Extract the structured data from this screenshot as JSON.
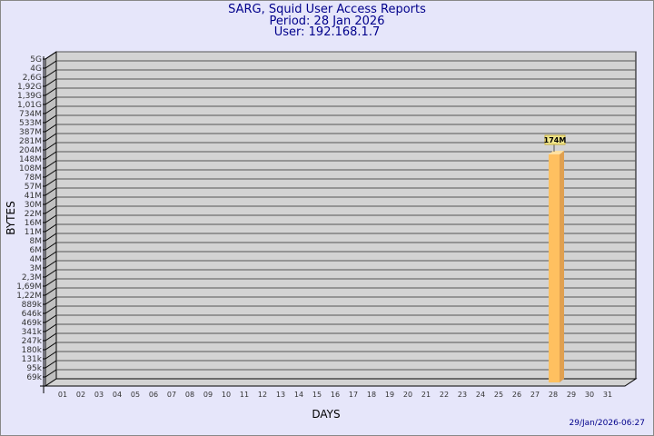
{
  "header": {
    "title": "SARG, Squid User Access Reports",
    "period": "Period: 28 Jan 2026",
    "user": "User: 192.168.1.7"
  },
  "footer": {
    "timestamp": "29/Jan/2026-06:27"
  },
  "colors": {
    "background": "#e6e6fa",
    "plot": "#d3d3d3",
    "bar": "#ffc060",
    "bar_side": "#e0a050",
    "text": "#00008b"
  },
  "chart_data": {
    "type": "bar",
    "title": "SARG, Squid User Access Reports",
    "xlabel": "DAYS",
    "ylabel": "BYTES",
    "y_scale": "log",
    "y_tick_labels": [
      "5G",
      "4G",
      "2,6G",
      "1,92G",
      "1,39G",
      "1,01G",
      "734M",
      "533M",
      "387M",
      "281M",
      "204M",
      "148M",
      "108M",
      "78M",
      "57M",
      "41M",
      "30M",
      "22M",
      "16M",
      "11M",
      "8M",
      "6M",
      "4M",
      "3M",
      "2,3M",
      "1,69M",
      "1,22M",
      "889k",
      "646k",
      "469k",
      "341k",
      "247k",
      "180k",
      "131k",
      "95k",
      "69k"
    ],
    "categories": [
      "01",
      "02",
      "03",
      "04",
      "05",
      "06",
      "07",
      "08",
      "09",
      "10",
      "11",
      "12",
      "13",
      "14",
      "15",
      "16",
      "17",
      "18",
      "19",
      "20",
      "21",
      "22",
      "23",
      "24",
      "25",
      "26",
      "27",
      "28",
      "29",
      "30",
      "31"
    ],
    "values": [
      0,
      0,
      0,
      0,
      0,
      0,
      0,
      0,
      0,
      0,
      0,
      0,
      0,
      0,
      0,
      0,
      0,
      0,
      0,
      0,
      0,
      0,
      0,
      0,
      0,
      0,
      0,
      174000000,
      0,
      0,
      0
    ],
    "data_labels": {
      "28": "174M"
    },
    "grid": true,
    "style": "3d"
  }
}
